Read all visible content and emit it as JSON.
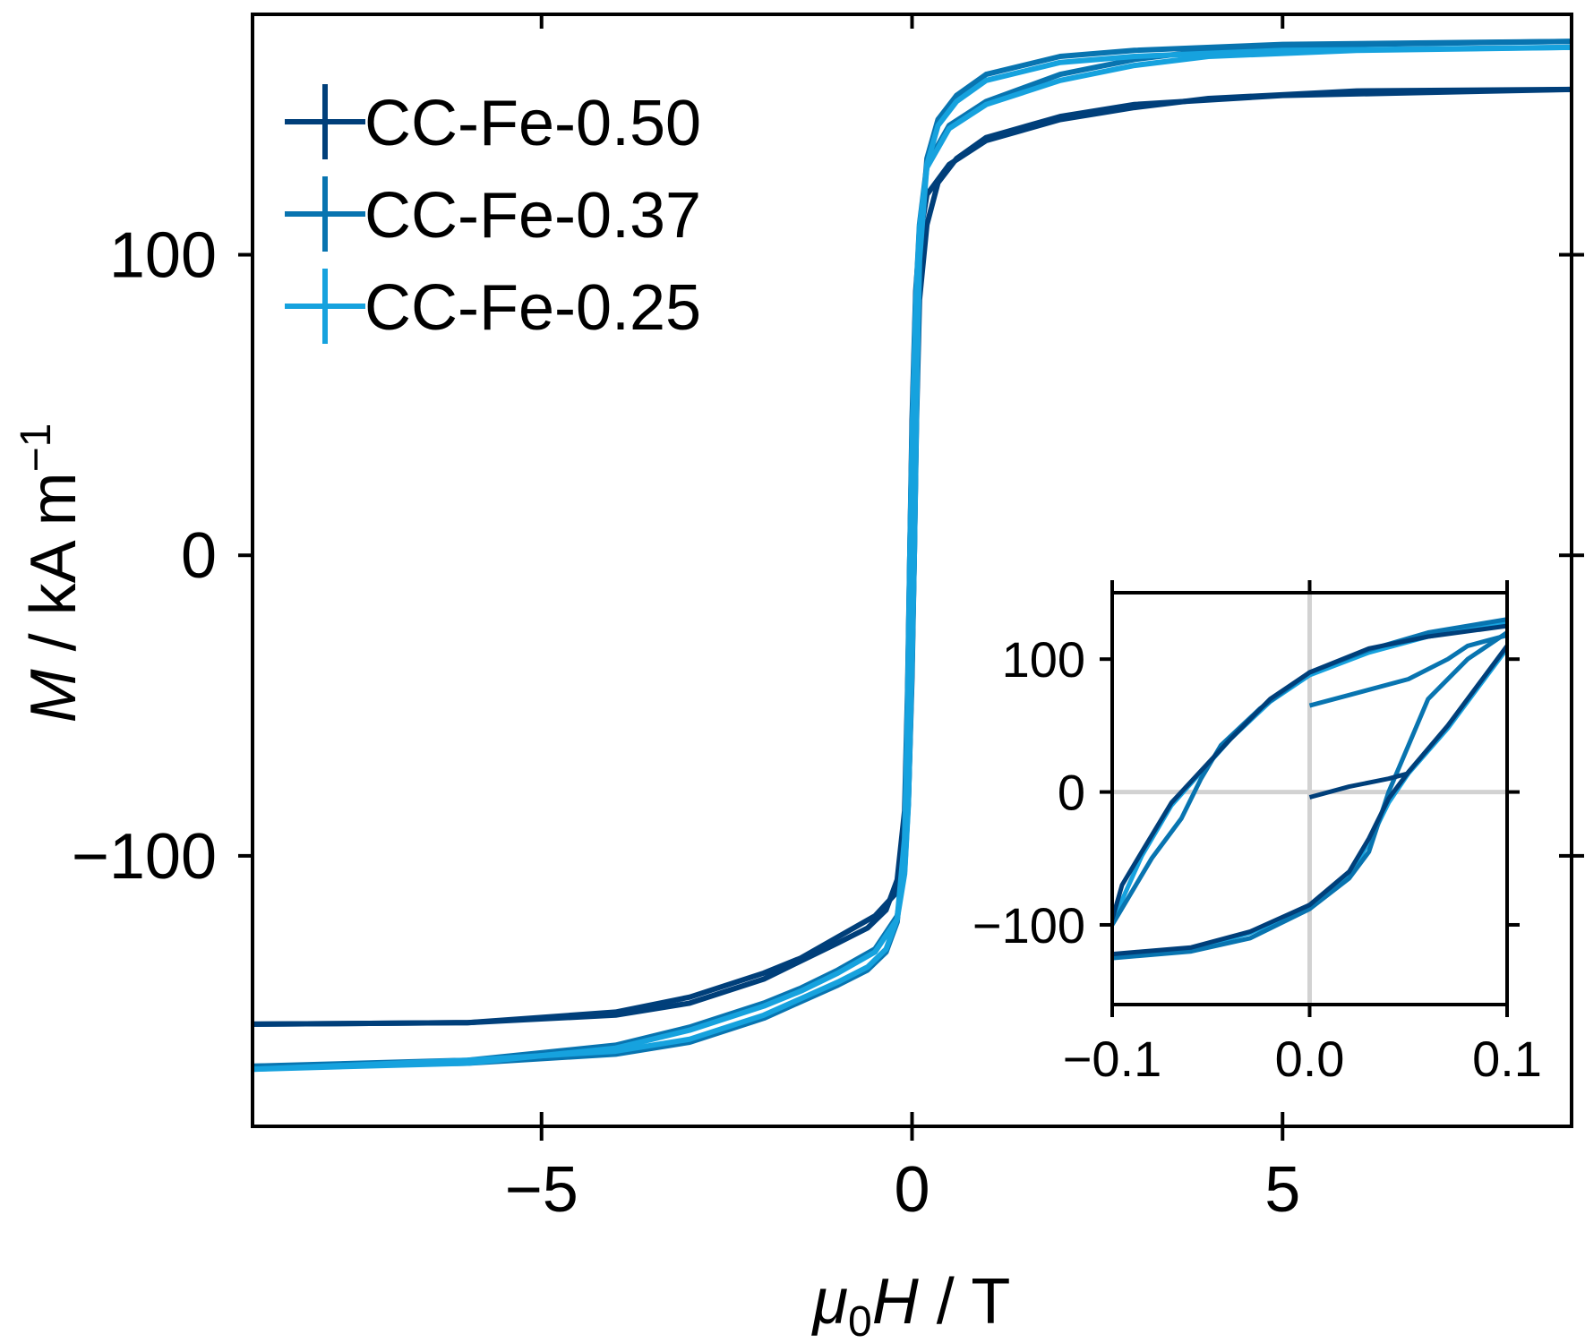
{
  "chart_data": [
    {
      "type": "line",
      "role": "main",
      "xlabel": {
        "prefix": "μ",
        "sub": "0",
        "var": "H",
        "unit": " / T"
      },
      "ylabel": {
        "var": "M",
        "unit": " / kA m",
        "sup": "−1"
      },
      "xlim": [
        -8.9,
        8.9
      ],
      "ylim": [
        -190,
        180
      ],
      "xticks": [
        -5,
        0,
        5
      ],
      "xtick_labels": [
        "−5",
        "0",
        "5"
      ],
      "yticks": [
        -100,
        0,
        100
      ],
      "ytick_labels": [
        "−100",
        "0",
        "100"
      ],
      "grid": false,
      "legend": "top-left",
      "series": [
        {
          "name": "CC-Fe-0.50",
          "color": "#003f7a",
          "Ms": 155,
          "upper": [
            [
              -8.9,
              -156
            ],
            [
              -6,
              -155.5
            ],
            [
              -4,
              -152
            ],
            [
              -3,
              -147
            ],
            [
              -2,
              -139
            ],
            [
              -1.5,
              -134
            ],
            [
              -1,
              -127
            ],
            [
              -0.5,
              -120
            ],
            [
              -0.2,
              -112
            ],
            [
              -0.1,
              -100
            ],
            [
              -0.05,
              -82
            ],
            [
              0,
              -40
            ],
            [
              0.03,
              0
            ],
            [
              0.06,
              45
            ],
            [
              0.1,
              85
            ],
            [
              0.2,
              110
            ],
            [
              0.35,
              124
            ],
            [
              0.6,
              132
            ],
            [
              1,
              139
            ],
            [
              2,
              146
            ],
            [
              3,
              150
            ],
            [
              5,
              153
            ],
            [
              8.9,
              155
            ]
          ],
          "lower": [
            [
              8.9,
              155
            ],
            [
              6,
              154.5
            ],
            [
              4,
              152
            ],
            [
              3,
              149
            ],
            [
              2,
              145
            ],
            [
              1,
              138
            ],
            [
              0.5,
              130
            ],
            [
              0.2,
              120
            ],
            [
              0.1,
              105
            ],
            [
              0.05,
              88
            ],
            [
              0,
              45
            ],
            [
              -0.03,
              0
            ],
            [
              -0.06,
              -45
            ],
            [
              -0.1,
              -85
            ],
            [
              -0.2,
              -108
            ],
            [
              -0.35,
              -118
            ],
            [
              -0.6,
              -124
            ],
            [
              -1,
              -129
            ],
            [
              -2,
              -141
            ],
            [
              -3,
              -149
            ],
            [
              -4,
              -153
            ],
            [
              -6,
              -155.5
            ],
            [
              -8.9,
              -156
            ]
          ]
        },
        {
          "name": "CC-Fe-0.37",
          "color": "#0874b0",
          "Ms": 172,
          "upper": [
            [
              -8.9,
              -170
            ],
            [
              -6,
              -168
            ],
            [
              -4,
              -163
            ],
            [
              -3,
              -157
            ],
            [
              -2,
              -149
            ],
            [
              -1.5,
              -144
            ],
            [
              -1,
              -138
            ],
            [
              -0.5,
              -131
            ],
            [
              -0.2,
              -120
            ],
            [
              -0.1,
              -105
            ],
            [
              -0.05,
              -82
            ],
            [
              0,
              -35
            ],
            [
              0.03,
              0
            ],
            [
              0.06,
              50
            ],
            [
              0.1,
              100
            ],
            [
              0.2,
              132
            ],
            [
              0.35,
              145
            ],
            [
              0.6,
              153
            ],
            [
              1,
              160
            ],
            [
              2,
              166
            ],
            [
              3,
              168
            ],
            [
              5,
              170
            ],
            [
              8.9,
              171
            ]
          ],
          "lower": [
            [
              8.9,
              171
            ],
            [
              6,
              170
            ],
            [
              4,
              168
            ],
            [
              3,
              165
            ],
            [
              2,
              160
            ],
            [
              1,
              151
            ],
            [
              0.5,
              143
            ],
            [
              0.2,
              130
            ],
            [
              0.1,
              110
            ],
            [
              0.05,
              85
            ],
            [
              0,
              40
            ],
            [
              -0.03,
              0
            ],
            [
              -0.06,
              -50
            ],
            [
              -0.1,
              -95
            ],
            [
              -0.2,
              -122
            ],
            [
              -0.35,
              -132
            ],
            [
              -0.6,
              -138
            ],
            [
              -1,
              -143
            ],
            [
              -2,
              -154
            ],
            [
              -3,
              -162
            ],
            [
              -4,
              -166
            ],
            [
              -6,
              -169
            ],
            [
              -8.9,
              -170
            ]
          ]
        },
        {
          "name": "CC-Fe-0.25",
          "color": "#16a2de",
          "Ms": 170,
          "upper": [
            [
              -8.9,
              -171
            ],
            [
              -6,
              -169
            ],
            [
              -4,
              -164
            ],
            [
              -3,
              -158
            ],
            [
              -2,
              -150
            ],
            [
              -1.5,
              -145
            ],
            [
              -1,
              -139
            ],
            [
              -0.5,
              -132
            ],
            [
              -0.2,
              -121
            ],
            [
              -0.1,
              -106
            ],
            [
              -0.05,
              -83
            ],
            [
              0,
              -36
            ],
            [
              0.03,
              0
            ],
            [
              0.06,
              48
            ],
            [
              0.1,
              98
            ],
            [
              0.2,
              130
            ],
            [
              0.35,
              143
            ],
            [
              0.6,
              151
            ],
            [
              1,
              158
            ],
            [
              2,
              164
            ],
            [
              3,
              166
            ],
            [
              5,
              168
            ],
            [
              8.9,
              169
            ]
          ],
          "lower": [
            [
              8.9,
              169
            ],
            [
              6,
              168
            ],
            [
              4,
              166
            ],
            [
              3,
              163
            ],
            [
              2,
              158
            ],
            [
              1,
              150
            ],
            [
              0.5,
              142
            ],
            [
              0.2,
              129
            ],
            [
              0.1,
              109
            ],
            [
              0.05,
              84
            ],
            [
              0,
              39
            ],
            [
              -0.03,
              0
            ],
            [
              -0.06,
              -49
            ],
            [
              -0.1,
              -94
            ],
            [
              -0.2,
              -121
            ],
            [
              -0.35,
              -131
            ],
            [
              -0.6,
              -137
            ],
            [
              -1,
              -142
            ],
            [
              -2,
              -153
            ],
            [
              -3,
              -161
            ],
            [
              -4,
              -165
            ],
            [
              -6,
              -168
            ],
            [
              -8.9,
              -171
            ]
          ]
        }
      ]
    },
    {
      "type": "line",
      "role": "inset",
      "xlim": [
        -0.1,
        0.1
      ],
      "ylim": [
        -160,
        150
      ],
      "xticks": [
        -0.1,
        0.0,
        0.1
      ],
      "xtick_labels": [
        "−0.1",
        "0.0",
        "0.1"
      ],
      "yticks": [
        -100,
        0,
        100
      ],
      "ytick_labels": [
        "−100",
        "0",
        "100"
      ],
      "zero_lines": true,
      "grid": false,
      "series": [
        {
          "name": "CC-Fe-0.50",
          "color": "#003f7a",
          "virgin": [
            [
              0,
              -4
            ],
            [
              0.02,
              4
            ],
            [
              0.04,
              10
            ],
            [
              0.05,
              14
            ]
          ],
          "descending": [
            [
              0.1,
              125
            ],
            [
              0.06,
              117
            ],
            [
              0.03,
              108
            ],
            [
              0,
              90
            ],
            [
              -0.02,
              70
            ],
            [
              -0.04,
              40
            ],
            [
              -0.07,
              -8
            ],
            [
              -0.085,
              -45
            ],
            [
              -0.095,
              -70
            ],
            [
              -0.1,
              -96
            ]
          ],
          "ascending": [
            [
              -0.1,
              -122
            ],
            [
              -0.06,
              -117
            ],
            [
              -0.03,
              -105
            ],
            [
              0,
              -85
            ],
            [
              0.02,
              -60
            ],
            [
              0.03,
              -35
            ],
            [
              0.04,
              -5
            ],
            [
              0.05,
              15
            ],
            [
              0.07,
              50
            ],
            [
              0.085,
              80
            ],
            [
              0.1,
              110
            ]
          ]
        },
        {
          "name": "CC-Fe-0.37",
          "color": "#0874b0",
          "virgin": [
            [
              0,
              65
            ],
            [
              0.02,
              73
            ],
            [
              0.05,
              85
            ],
            [
              0.07,
              100
            ],
            [
              0.08,
              110
            ],
            [
              0.1,
              118
            ]
          ],
          "descending": [
            [
              0.1,
              130
            ],
            [
              0.06,
              120
            ],
            [
              0.03,
              107
            ],
            [
              0,
              90
            ],
            [
              -0.025,
              63
            ],
            [
              -0.045,
              35
            ],
            [
              -0.055,
              10
            ],
            [
              -0.065,
              -20
            ],
            [
              -0.08,
              -50
            ],
            [
              -0.1,
              -100
            ]
          ],
          "ascending": [
            [
              -0.1,
              -125
            ],
            [
              -0.06,
              -120
            ],
            [
              -0.03,
              -110
            ],
            [
              0,
              -88
            ],
            [
              0.02,
              -65
            ],
            [
              0.03,
              -45
            ],
            [
              0.04,
              0
            ],
            [
              0.05,
              35
            ],
            [
              0.06,
              70
            ],
            [
              0.08,
              100
            ],
            [
              0.1,
              120
            ]
          ]
        },
        {
          "name": "CC-Fe-0.25",
          "color": "#16a2de",
          "descending": [
            [
              0.1,
              127
            ],
            [
              0.06,
              117
            ],
            [
              0.03,
              105
            ],
            [
              0,
              88
            ],
            [
              -0.02,
              68
            ],
            [
              -0.04,
              40
            ],
            [
              -0.07,
              -10
            ],
            [
              -0.085,
              -48
            ],
            [
              -0.1,
              -98
            ]
          ],
          "ascending": [
            [
              -0.1,
              -123
            ],
            [
              -0.06,
              -118
            ],
            [
              -0.03,
              -106
            ],
            [
              0,
              -86
            ],
            [
              0.02,
              -62
            ],
            [
              0.03,
              -38
            ],
            [
              0.04,
              -8
            ],
            [
              0.05,
              14
            ],
            [
              0.07,
              48
            ],
            [
              0.085,
              78
            ],
            [
              0.1,
              108
            ]
          ]
        }
      ]
    }
  ]
}
